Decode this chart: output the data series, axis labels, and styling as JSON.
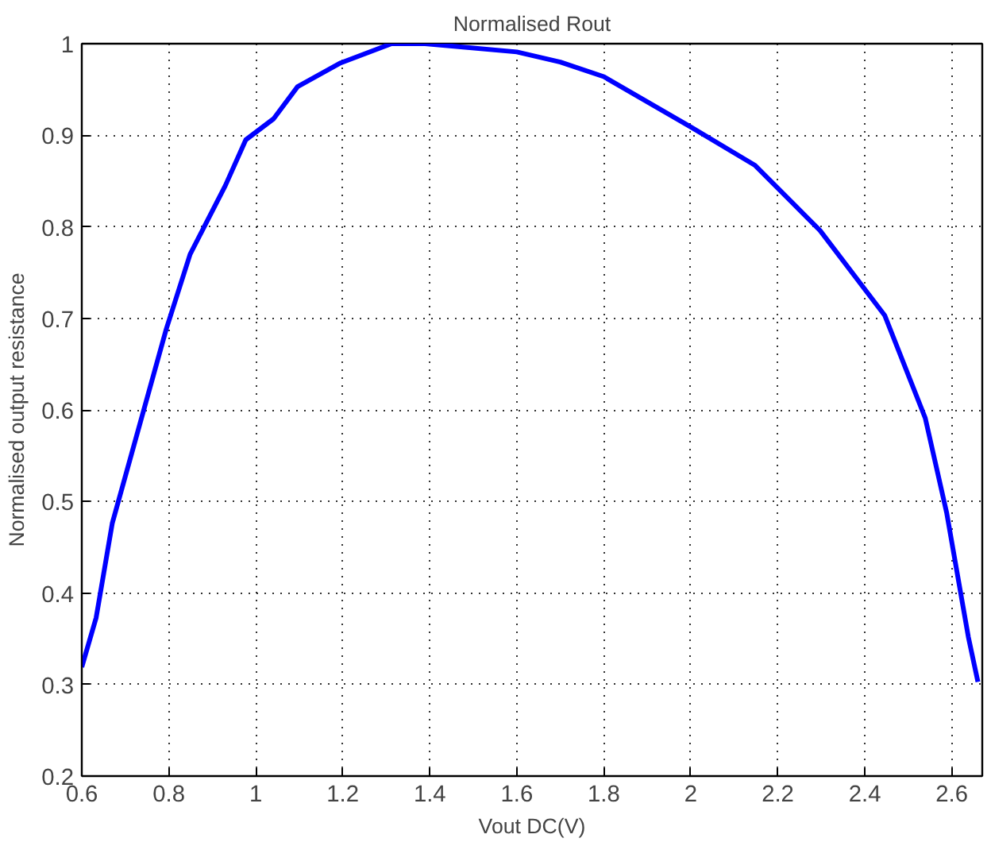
{
  "chart_data": {
    "type": "line",
    "title": "Normalised Rout",
    "xlabel": "Vout DC(V)",
    "ylabel": "Normalised output resistance",
    "xlim": [
      0.6,
      2.67
    ],
    "ylim": [
      0.2,
      1
    ],
    "xticks": [
      0.6,
      0.8,
      1,
      1.2,
      1.4,
      1.6,
      1.8,
      2,
      2.2,
      2.4,
      2.6
    ],
    "yticks": [
      0.2,
      0.3,
      0.4,
      0.5,
      0.6,
      0.7,
      0.8,
      0.9,
      1
    ],
    "grid": true,
    "line_style": "solid",
    "series": [
      {
        "color": "#0000ff",
        "x": [
          0.6,
          0.633,
          0.67,
          0.794,
          0.849,
          0.93,
          0.977,
          1.041,
          1.096,
          1.195,
          1.312,
          1.389,
          1.6,
          1.7,
          1.8,
          2.0,
          2.148,
          2.297,
          2.446,
          2.539,
          2.588,
          2.638,
          2.66
        ],
        "values": [
          0.319,
          0.373,
          0.476,
          0.688,
          0.77,
          0.845,
          0.895,
          0.918,
          0.953,
          0.979,
          1.0,
          1.0,
          0.991,
          0.98,
          0.964,
          0.909,
          0.867,
          0.796,
          0.703,
          0.591,
          0.488,
          0.352,
          0.303
        ]
      }
    ]
  }
}
